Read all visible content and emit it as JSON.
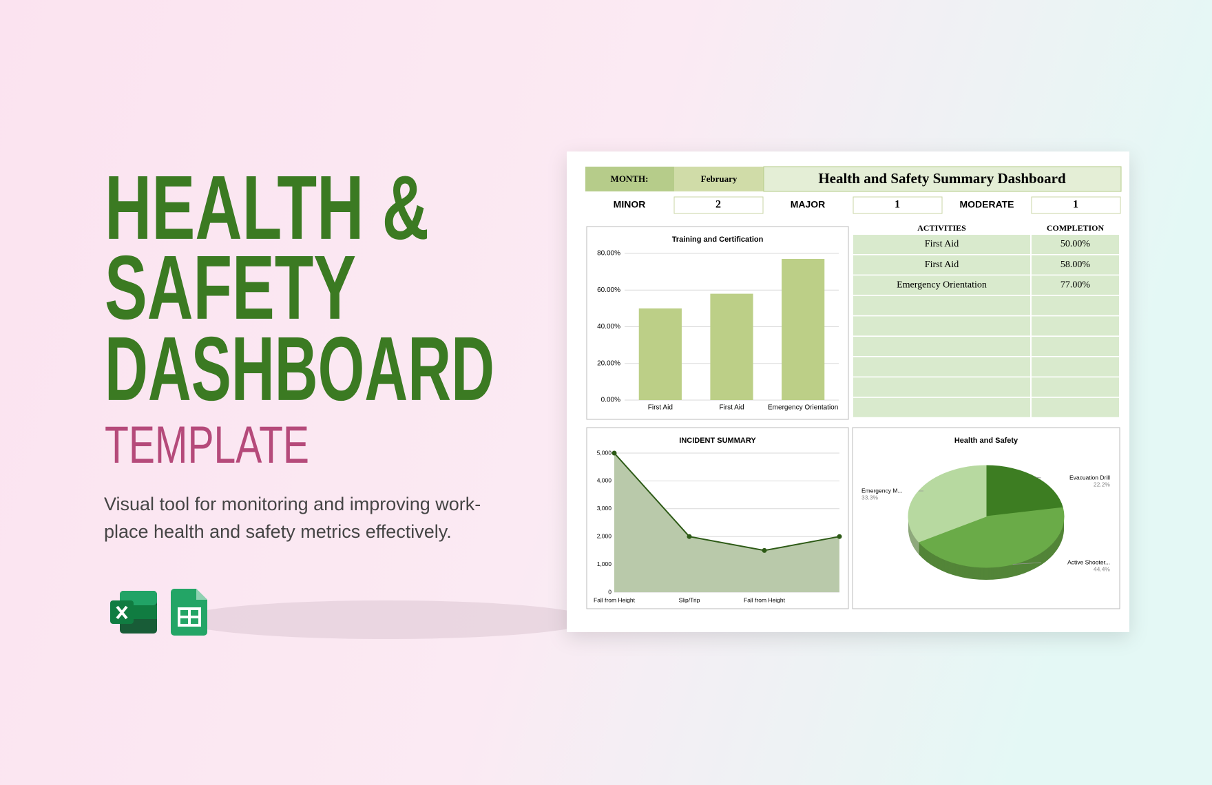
{
  "promo": {
    "title_lines": [
      "HEALTH &",
      "SAFETY",
      "DASHBOARD"
    ],
    "subtitle": "TEMPLATE",
    "description_lines": [
      "Visual tool for monitoring and improving work-",
      "place health and safety metrics effectively."
    ]
  },
  "dashboard": {
    "month_label": "MONTH:",
    "month": "February",
    "title": "Health and Safety Summary Dashboard",
    "counts": [
      {
        "label": "MINOR",
        "value": 2
      },
      {
        "label": "MAJOR",
        "value": 1
      },
      {
        "label": "MODERATE",
        "value": 1
      }
    ],
    "table": {
      "headers": [
        "ACTIVITIES",
        "COMPLETION"
      ],
      "rows": [
        [
          "First Aid",
          "50.00%"
        ],
        [
          "First Aid",
          "58.00%"
        ],
        [
          "Emergency Orientation",
          "77.00%"
        ]
      ]
    }
  },
  "chart_data": [
    {
      "type": "bar",
      "title": "Training and Certification",
      "categories": [
        "First Aid",
        "First Aid",
        "Emergency Orientation"
      ],
      "values": [
        50,
        58,
        77
      ],
      "color": "#bccf87",
      "ylim": [
        0,
        80
      ],
      "yticks": [
        {
          "value": 0,
          "label": "0.00%"
        },
        {
          "value": 20,
          "label": "20.00%"
        },
        {
          "value": 40,
          "label": "40.00%"
        },
        {
          "value": 60,
          "label": "60.00%"
        },
        {
          "value": 80,
          "label": "80.00%"
        }
      ],
      "grid": true
    },
    {
      "type": "area",
      "title": "INCIDENT SUMMARY",
      "categories": [
        "Fall from Height",
        "Slip/Trip",
        "Fall from Height",
        null
      ],
      "values": [
        5000,
        2000,
        1500,
        2000
      ],
      "color": "#2d5a16",
      "fill": "#b9c9aa",
      "ylim": [
        0,
        5000
      ],
      "yticks": [
        0,
        {
          "value": 1000,
          "label": "1,000"
        },
        {
          "value": 2000,
          "label": "2,000"
        },
        {
          "value": 3000,
          "label": "3,000"
        },
        {
          "value": 4000,
          "label": "4,000"
        },
        {
          "value": 5000,
          "label": "5,000"
        }
      ],
      "grid": true
    },
    {
      "type": "pie",
      "title": "Health and Safety",
      "categories": [
        "Evacuation Drill",
        "Active Shooter...",
        "Emergency M..."
      ],
      "values": [
        22.2,
        44.4,
        33.3
      ],
      "value_labels": [
        "22.2%",
        "44.4%",
        "33.3%"
      ],
      "colors": [
        "#3d7d22",
        "#6aab48",
        "#b7d9a0"
      ],
      "three_d": true
    }
  ]
}
